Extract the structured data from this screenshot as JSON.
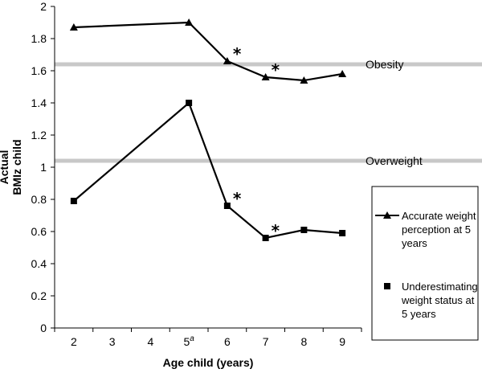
{
  "chart_data": {
    "type": "line",
    "xlabel": "Age child (years)",
    "ylabel_lines": [
      "Actual",
      "BMIz child"
    ],
    "ylim": [
      0,
      2
    ],
    "y_ticks": [
      "0",
      "0.2",
      "0.4",
      "0.6",
      "0.8",
      "1",
      "1.2",
      "1.4",
      "1.6",
      "1.8",
      "2"
    ],
    "categories": [
      "2",
      "3",
      "4",
      "5",
      "6",
      "7",
      "8",
      "9"
    ],
    "category_superscripts": [
      "",
      "",
      "",
      "a",
      "",
      "",
      "",
      ""
    ],
    "grid": false,
    "legend_position": "right",
    "reference_lines": [
      {
        "label": "Obesity",
        "value": 1.64
      },
      {
        "label": "Overweight",
        "value": 1.04
      }
    ],
    "series": [
      {
        "name": "Accurate weight perception at 5 years",
        "legend_lines": [
          "Accurate weight",
          "perception at 5",
          "years"
        ],
        "marker": "triangle",
        "x": [
          "2",
          "5",
          "6",
          "7",
          "8",
          "9"
        ],
        "values": [
          1.87,
          1.9,
          1.66,
          1.56,
          1.54,
          1.58
        ],
        "significant": [
          false,
          false,
          true,
          true,
          false,
          false
        ]
      },
      {
        "name": "Underestimating weight status at 5 years",
        "legend_lines": [
          "Underestimating",
          "weight status at",
          "5 years"
        ],
        "marker": "square",
        "x": [
          "2",
          "5",
          "6",
          "7",
          "8",
          "9"
        ],
        "values": [
          0.79,
          1.4,
          0.76,
          0.56,
          0.61,
          0.59
        ],
        "significant": [
          false,
          false,
          true,
          true,
          false,
          false
        ]
      }
    ],
    "significance_marker": "*"
  }
}
